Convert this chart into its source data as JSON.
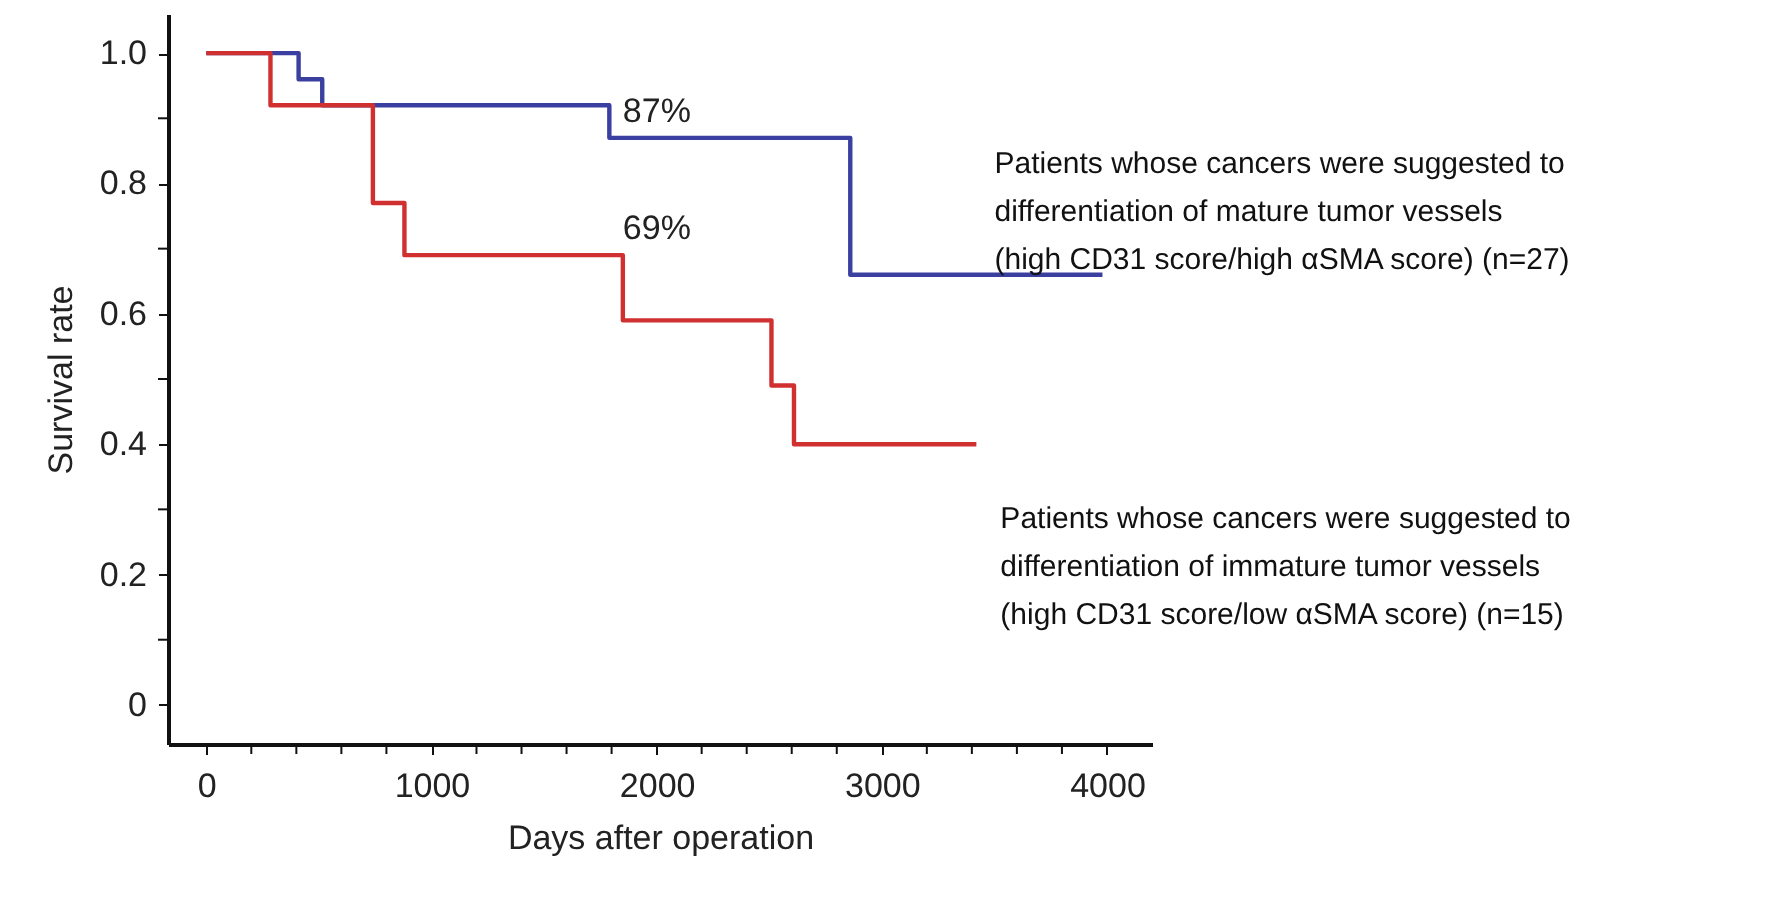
{
  "chart_data": {
    "type": "step",
    "xlabel": "Days after operation",
    "ylabel": "Survival rate",
    "xlim": [
      -170,
      4200
    ],
    "xticks": [
      0,
      {
        "value": 200,
        "label": null
      },
      {
        "value": 400,
        "label": null
      },
      {
        "value": 600,
        "label": null
      },
      {
        "value": 800,
        "label": null
      },
      1000,
      {
        "value": 1200,
        "label": null
      },
      {
        "value": 1400,
        "label": null
      },
      {
        "value": 1600,
        "label": null
      },
      {
        "value": 1800,
        "label": null
      },
      2000,
      {
        "value": 2200,
        "label": null
      },
      {
        "value": 2400,
        "label": null
      },
      {
        "value": 2600,
        "label": null
      },
      {
        "value": 2800,
        "label": null
      },
      3000,
      {
        "value": 3200,
        "label": null
      },
      {
        "value": 3400,
        "label": null
      },
      {
        "value": 3600,
        "label": null
      },
      {
        "value": 3800,
        "label": null
      },
      4000
    ],
    "ylim": [
      -0.06,
      1.06
    ],
    "yticks": [
      0,
      {
        "value": 0.1,
        "label": null
      },
      0.2,
      {
        "value": 0.3,
        "label": null
      },
      0.4,
      {
        "value": 0.5,
        "label": null
      },
      0.6,
      {
        "value": 0.7,
        "label": null
      },
      0.8,
      {
        "value": 0.9,
        "label": null
      },
      {
        "value": 1.0,
        "label": "1.0"
      }
    ],
    "series": [
      {
        "name": "Patients whose cancers were suggested to differentiation of mature tumor vessels (high CD31 score/high αSMA score) (n=27)",
        "color": "#3b3fa0",
        "x": [
          0,
          410,
          515,
          1790,
          2860,
          3980
        ],
        "values": [
          1.0,
          0.96,
          0.92,
          0.87,
          0.66,
          0.66
        ]
      },
      {
        "name": "Patients whose cancers were suggested to differentiation of immature tumor vessels (high CD31 score/low αSMA score) (n=15)",
        "color": "#d03030",
        "x": [
          0,
          285,
          740,
          880,
          1850,
          2510,
          2610,
          3420
        ],
        "values": [
          1.0,
          0.92,
          0.77,
          0.69,
          0.59,
          0.49,
          0.4,
          0.4
        ]
      }
    ],
    "annotations": [
      {
        "text": "87%",
        "x": 1850,
        "y": 0.87
      },
      {
        "text": "69%",
        "x": 1850,
        "y": 0.69
      }
    ],
    "grid": false,
    "legend": false,
    "marker": "none",
    "line_style": "solid"
  }
}
